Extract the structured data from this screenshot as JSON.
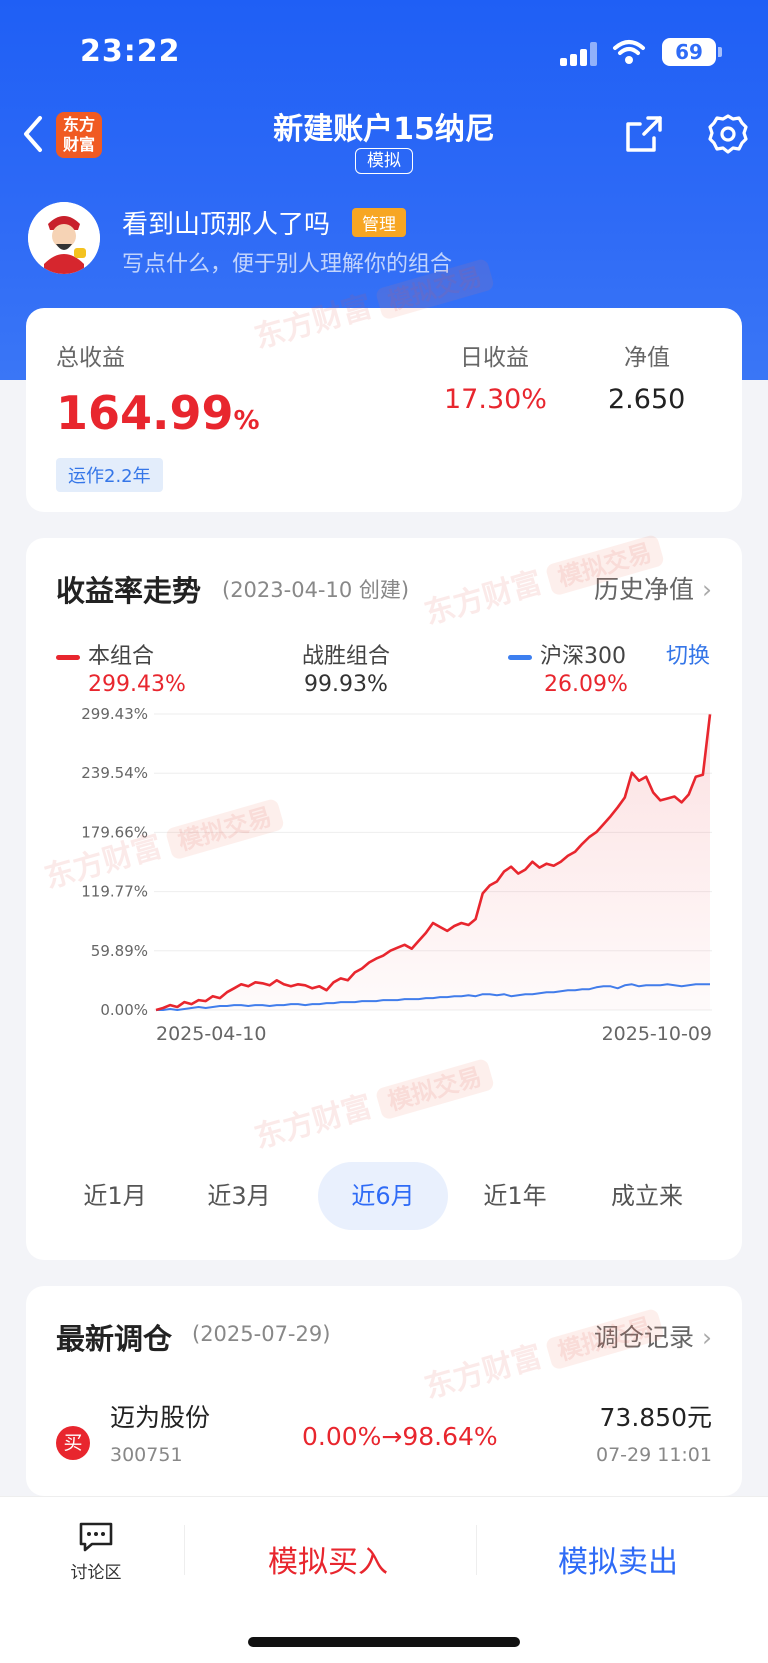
{
  "status": {
    "time": "23:22",
    "battery": "69"
  },
  "header": {
    "title": "新建账户15纳尼",
    "tag": "模拟",
    "logo_line1": "东方",
    "logo_line2": "财富"
  },
  "profile": {
    "nickname": "看到山顶那人了吗",
    "badge": "管理",
    "description": "写点什么，便于别人理解你的组合"
  },
  "summary": {
    "total_label": "总收益",
    "total_value": "164.99",
    "total_unit": "%",
    "daily_label": "日收益",
    "daily_value": "17.30%",
    "nav_label": "净值",
    "nav_value": "2.650",
    "age": "运作2.2年"
  },
  "trend": {
    "title": "收益率走势",
    "created": "(2023-04-10 创建)",
    "history_link": "历史净值",
    "switch": "切换",
    "legend": [
      {
        "name": "本组合",
        "value": "299.43%",
        "color": "#e8262e"
      },
      {
        "name": "战胜组合",
        "value": "99.93%",
        "color": "#333333"
      },
      {
        "name": "沪深300",
        "value": "26.09%",
        "color": "#3d7ff0"
      }
    ],
    "periods": [
      "近1月",
      "近3月",
      "近6月",
      "近1年",
      "成立来"
    ],
    "active_period": "近6月"
  },
  "chart_data": {
    "type": "line",
    "y_ticks": [
      "299.43%",
      "239.54%",
      "179.66%",
      "119.77%",
      "59.89%",
      "0.00%"
    ],
    "ylim": [
      0,
      299.43
    ],
    "x_start": "2025-04-10",
    "x_end": "2025-10-09",
    "series": [
      {
        "name": "本组合",
        "color": "#e8262e",
        "values": [
          0,
          2,
          5,
          3,
          8,
          6,
          10,
          9,
          14,
          12,
          18,
          22,
          26,
          24,
          28,
          27,
          25,
          30,
          26,
          24,
          26,
          25,
          22,
          24,
          20,
          28,
          32,
          30,
          38,
          42,
          48,
          52,
          55,
          60,
          63,
          66,
          62,
          70,
          78,
          88,
          84,
          80,
          85,
          88,
          86,
          92,
          118,
          126,
          130,
          140,
          145,
          138,
          142,
          150,
          144,
          148,
          146,
          150,
          156,
          160,
          168,
          175,
          180,
          188,
          196,
          205,
          215,
          240,
          232,
          236,
          220,
          212,
          214,
          216,
          210,
          218,
          236,
          238,
          299
        ]
      },
      {
        "name": "沪深300",
        "color": "#3d7ff0",
        "values": [
          0,
          0,
          1,
          0,
          1,
          2,
          3,
          2,
          3,
          4,
          4,
          5,
          5,
          4,
          5,
          5,
          4,
          5,
          5,
          6,
          6,
          5,
          6,
          6,
          7,
          7,
          8,
          8,
          8,
          9,
          9,
          9,
          10,
          10,
          10,
          11,
          11,
          11,
          12,
          12,
          13,
          13,
          14,
          14,
          15,
          14,
          16,
          16,
          15,
          16,
          14,
          15,
          16,
          16,
          17,
          18,
          18,
          19,
          20,
          20,
          21,
          21,
          23,
          24,
          24,
          22,
          25,
          26,
          24,
          25,
          25,
          25,
          26,
          25,
          24,
          25,
          26,
          26,
          26
        ]
      }
    ]
  },
  "rebalance": {
    "title": "最新调仓",
    "date": "(2025-07-29)",
    "link": "调仓记录",
    "item": {
      "action": "买",
      "name": "迈为股份",
      "code": "300751",
      "change": "0.00%→98.64%",
      "price": "73.850元",
      "time": "07-29 11:01"
    }
  },
  "bottom": {
    "discuss": "讨论区",
    "buy": "模拟买入",
    "sell": "模拟卖出"
  },
  "watermark": {
    "brand": "东方财富",
    "tag": "模拟交易"
  }
}
